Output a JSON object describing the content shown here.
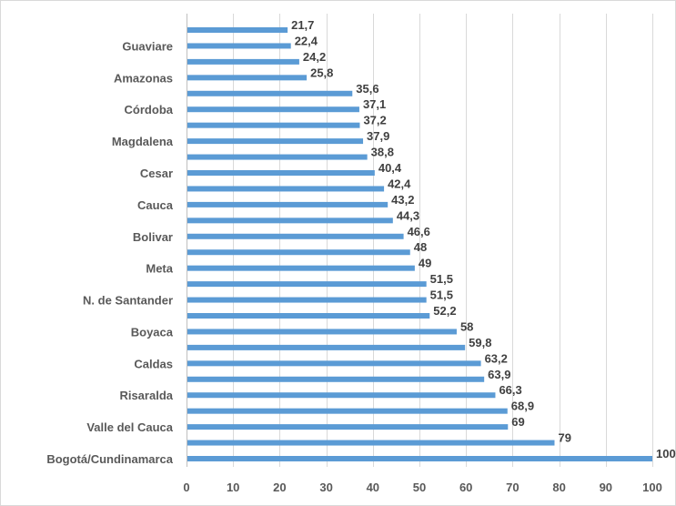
{
  "chart_data": {
    "type": "bar",
    "orientation": "horizontal",
    "title": "",
    "xlabel": "",
    "ylabel": "",
    "xlim": [
      0,
      100
    ],
    "x_ticks": [
      "0",
      "10",
      "20",
      "30",
      "40",
      "50",
      "60",
      "70",
      "80",
      "90",
      "100"
    ],
    "grid": true,
    "bar_color": "#5b9bd5",
    "values": [
      21.7,
      22.4,
      24.2,
      25.8,
      35.6,
      37.1,
      37.2,
      37.9,
      38.8,
      40.4,
      42.4,
      43.2,
      44.3,
      46.6,
      48,
      49,
      51.5,
      51.5,
      52.2,
      58,
      59.8,
      63.2,
      63.9,
      66.3,
      68.9,
      69,
      79,
      100
    ],
    "value_labels": [
      "21,7",
      "22,4",
      "24,2",
      "25,8",
      "35,6",
      "37,1",
      "37,2",
      "37,9",
      "38,8",
      "40,4",
      "42,4",
      "43,2",
      "44,3",
      "46,6",
      "48",
      "49",
      "51,5",
      "51,5",
      "52,2",
      "58",
      "59,8",
      "63,2",
      "63,9",
      "66,3",
      "68,9",
      "69",
      "79",
      "100"
    ],
    "categories": [
      "",
      "Guaviare",
      "",
      "Amazonas",
      "",
      "Córdoba",
      "",
      "Magdalena",
      "",
      "Cesar",
      "",
      "Cauca",
      "",
      "Bolivar",
      "",
      "Meta",
      "",
      "N. de Santander",
      "",
      "Boyaca",
      "",
      "Caldas",
      "",
      "Risaralda",
      "",
      "Valle del Cauca",
      "",
      "Bogotá/Cundinamarca"
    ]
  }
}
